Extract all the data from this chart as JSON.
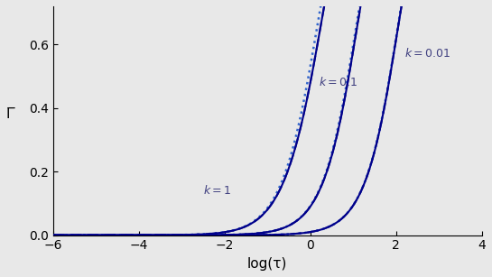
{
  "k_values": [
    1.0,
    0.1,
    0.01
  ],
  "log_tau_min": -6,
  "log_tau_max": 4,
  "ylim": [
    0,
    0.72
  ],
  "yticks": [
    0,
    0.2,
    0.4,
    0.6
  ],
  "xticks": [
    -6,
    -4,
    -2,
    0,
    2,
    4
  ],
  "xlabel": "log(τ)",
  "ylabel": "Γ̅",
  "color_exact": "#00008B",
  "color_dashed": "#00008B",
  "color_dotted": "#4169E1",
  "label_k1": "k = 1",
  "label_k01": "k =0.1",
  "label_k001": "k=0.01",
  "bg_color": "#f0f0f0",
  "n_points": 2000
}
